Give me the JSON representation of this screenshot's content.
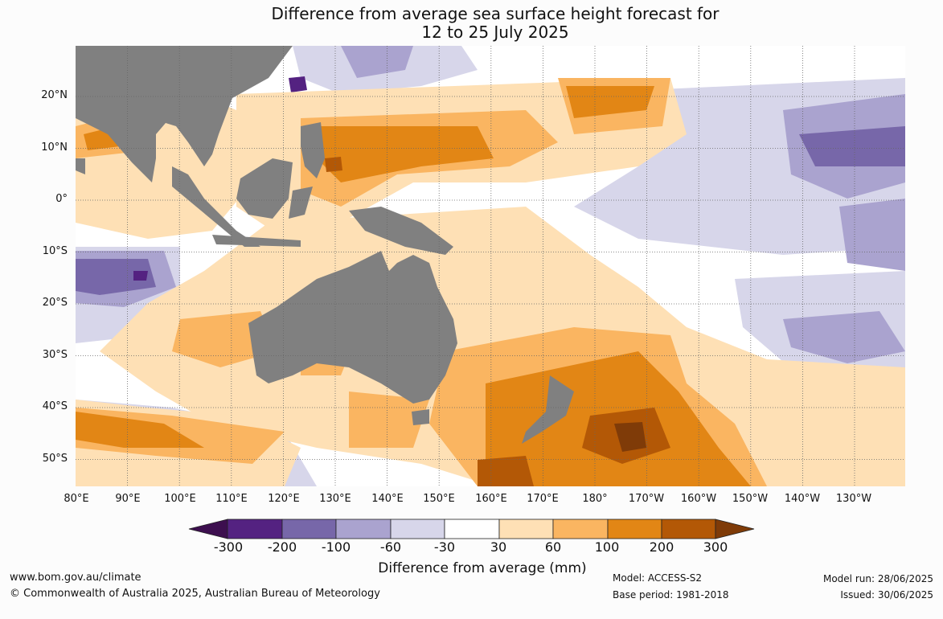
{
  "title": {
    "line1": "Difference from average sea surface height forecast for",
    "line2": "12 to 25 July 2025"
  },
  "map": {
    "lat_labels": [
      "20°N",
      "10°N",
      "0°",
      "10°S",
      "20°S",
      "30°S",
      "40°S",
      "50°S"
    ],
    "lon_labels": [
      "80°E",
      "90°E",
      "100°E",
      "110°E",
      "120°E",
      "130°E",
      "140°E",
      "150°E",
      "160°E",
      "170°E",
      "180°",
      "170°W",
      "160°W",
      "150°W",
      "140°W",
      "130°W"
    ],
    "land_color": "#808080",
    "grid": "dotted"
  },
  "colorbar": {
    "label": "Difference from average (mm)",
    "ticks": [
      "-300",
      "-200",
      "-100",
      "-60",
      "-30",
      "30",
      "60",
      "100",
      "200",
      "300"
    ],
    "colors": [
      "#3d0f4f",
      "#542281",
      "#7767a9",
      "#aaa3cf",
      "#d7d6ea",
      "#ffffff",
      "#fee0b5",
      "#fab561",
      "#e28615",
      "#b35806",
      "#7f3b08"
    ]
  },
  "footer": {
    "website": "www.bom.gov.au/climate",
    "copyright": "© Commonwealth of Australia 2025, Australian Bureau of Meteorology",
    "model": "Model: ACCESS-S2",
    "base_period": "Base period: 1981-2018",
    "model_run": "Model run: 28/06/2025",
    "issued": "Issued: 30/06/2025"
  }
}
